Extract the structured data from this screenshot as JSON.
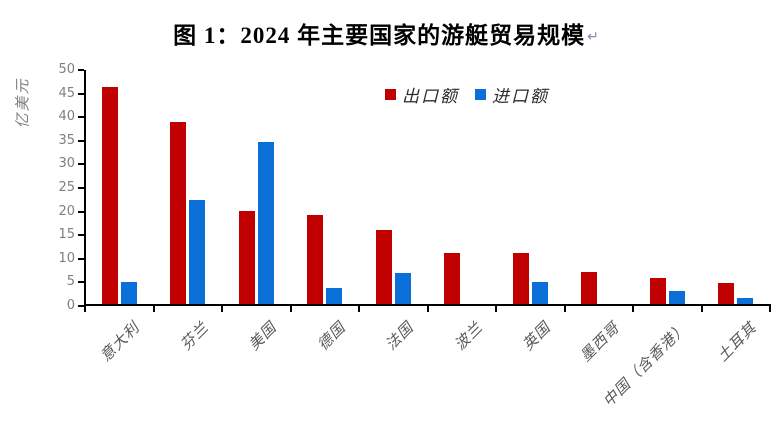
{
  "document": {
    "paragraph_mark": "↵"
  },
  "chart_data": {
    "type": "bar",
    "title": "图 1：2024 年主要国家的游艇贸易规模",
    "categories": [
      "意大利",
      "芬兰",
      "美国",
      "德国",
      "法国",
      "波兰",
      "英国",
      "墨西哥",
      "中国（含香港）",
      "土耳其"
    ],
    "series": [
      {
        "name": "出口额",
        "color": "#C00000",
        "values": [
          46.5,
          39.0,
          20.2,
          19.2,
          16.0,
          11.3,
          11.3,
          7.2,
          5.9,
          4.8
        ]
      },
      {
        "name": "进口额",
        "color": "#0B6FD8",
        "values": [
          5.0,
          22.5,
          34.7,
          3.9,
          7.0,
          0.5,
          5.0,
          0,
          3.1,
          1.7
        ]
      }
    ],
    "xlabel": "",
    "ylabel": "亿美元",
    "ylim": [
      0,
      50
    ],
    "yticks": [
      0,
      5,
      10,
      15,
      20,
      25,
      30,
      35,
      40,
      45,
      50
    ],
    "grid": false,
    "legend_position": "top-center"
  },
  "styles": {
    "export_color": "#C00000",
    "import_color": "#0B6FD8",
    "axis_color": "#000000",
    "tick_label_color": "#7F7F7F",
    "category_label_color": "#595959"
  }
}
